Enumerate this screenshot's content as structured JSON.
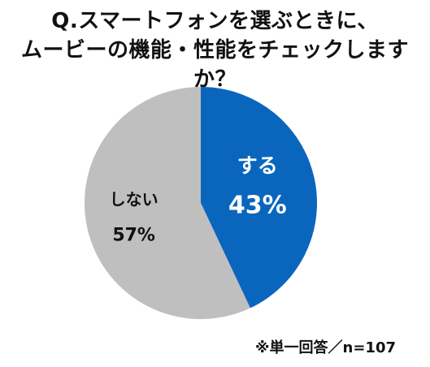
{
  "chart_data": {
    "type": "pie",
    "title_lines": [
      "Q.スマートフォンを選ぶときに、",
      "ムービーの機能・性能をチェックしますか？"
    ],
    "slices": [
      {
        "label": "する",
        "value": 43,
        "value_label": "43%",
        "color": "#0a66bd",
        "label_color": "#ffffff"
      },
      {
        "label": "しない",
        "value": 57,
        "value_label": "57%",
        "color": "#bfbfbf",
        "label_color": "#111111"
      }
    ],
    "note": "※単一回答／n=107"
  }
}
